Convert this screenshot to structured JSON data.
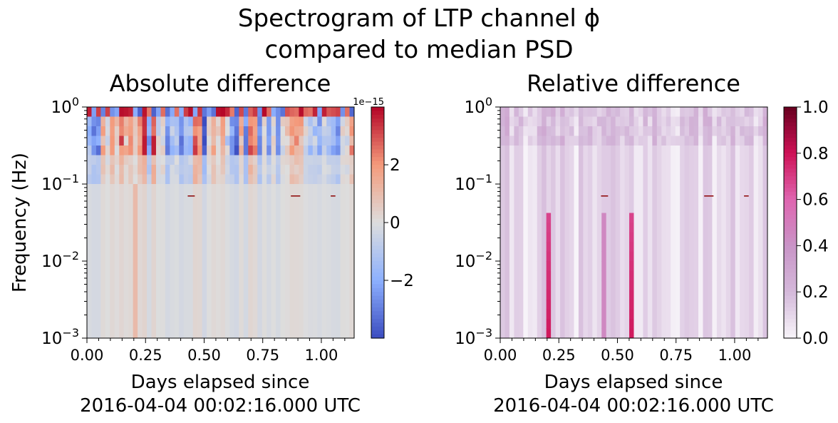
{
  "figure": {
    "title_line1": "Spectrogram of LTP channel ϕ",
    "title_line2": "compared to median PSD"
  },
  "chart_data": [
    {
      "type": "heatmap",
      "title": "Absolute difference",
      "xlabel_line1": "Days elapsed since",
      "xlabel_line2": "2016-04-04 00:02:16.000 UTC",
      "ylabel": "Frequency (Hz)",
      "yscale": "log",
      "xlim": [
        0,
        1.14
      ],
      "ylim": [
        0.001,
        1
      ],
      "x_ticks": [
        "0.00",
        "0.25",
        "0.50",
        "0.75",
        "1.00"
      ],
      "y_ticks": [
        {
          "base": "10",
          "exp": "−3"
        },
        {
          "base": "10",
          "exp": "−2"
        },
        {
          "base": "10",
          "exp": "−1"
        },
        {
          "base": "10",
          "exp": "0"
        }
      ],
      "colorbar": {
        "cmap": "coolwarm",
        "range": [
          -4e-15,
          4e-15
        ],
        "offset_label": "1e−15",
        "ticks": [
          "−2",
          "0",
          "2"
        ]
      },
      "grid": false
    },
    {
      "type": "heatmap",
      "title": "Relative difference",
      "xlabel_line1": "Days elapsed since",
      "xlabel_line2": "2016-04-04 00:02:16.000 UTC",
      "ylabel": "",
      "yscale": "log",
      "xlim": [
        0,
        1.14
      ],
      "ylim": [
        0.001,
        1
      ],
      "x_ticks": [
        "0.00",
        "0.25",
        "0.50",
        "0.75",
        "1.00"
      ],
      "y_ticks": [
        {
          "base": "10",
          "exp": "−3"
        },
        {
          "base": "10",
          "exp": "−2"
        },
        {
          "base": "10",
          "exp": "−1"
        },
        {
          "base": "10",
          "exp": "0"
        }
      ],
      "colorbar": {
        "cmap": "PuRd",
        "range": [
          0,
          1
        ],
        "ticks": [
          "0.0",
          "0.2",
          "0.4",
          "0.6",
          "0.8",
          "1.0"
        ]
      },
      "highlight_columns_days": [
        0.2,
        0.44,
        0.555
      ],
      "line_marker_frequency_hz": 0.07,
      "grid": false
    }
  ]
}
